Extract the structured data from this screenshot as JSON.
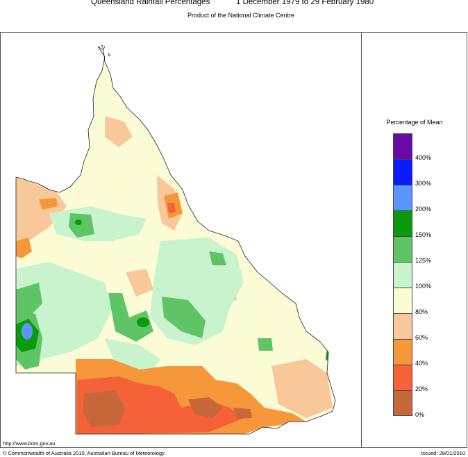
{
  "header": {
    "title": "Queensland Rainfall Percentages",
    "period": "1 December 1979 to 29 February 1980",
    "subtitle": "Product of the National Climate Centre"
  },
  "legend": {
    "title": "Percentage of Mean",
    "bins": [
      {
        "label": "400%",
        "color": "#6a0aa6"
      },
      {
        "label": "300%",
        "color": "#0a1cff"
      },
      {
        "label": "200%",
        "color": "#5b96ff"
      },
      {
        "label": "150%",
        "color": "#0a9a0a"
      },
      {
        "label": "125%",
        "color": "#5fc465"
      },
      {
        "label": "100%",
        "color": "#c8f3cd"
      },
      {
        "label": "80%",
        "color": "#fbfcd6"
      },
      {
        "label": "60%",
        "color": "#f9c89a"
      },
      {
        "label": "40%",
        "color": "#f5973a"
      },
      {
        "label": "20%",
        "color": "#f5623a"
      },
      {
        "label": "0%",
        "color": "#c8683a"
      }
    ]
  },
  "footer": {
    "url": "http://www.bom.gov.au",
    "copyright": "© Commonwealth of Australia 2010, Australian Bureau of Meteorology",
    "issued": "Issued: 28/01/2010"
  }
}
